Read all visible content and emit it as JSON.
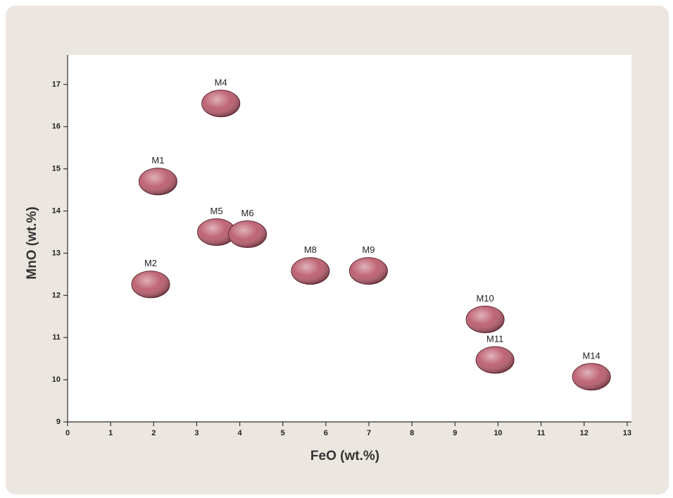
{
  "chart_data": {
    "type": "scatter",
    "x_label": "FeO (wt.%)",
    "y_label": "MnO (wt.%)",
    "point_labels": [
      "M4",
      "M1",
      "M2",
      "M5",
      "M6",
      "M8",
      "M9",
      "M10",
      "M11",
      "M14"
    ],
    "x": [
      3.56,
      2.1,
      1.93,
      3.46,
      4.18,
      5.64,
      6.99,
      9.7,
      9.93,
      12.17
    ],
    "values": [
      16.55,
      14.7,
      12.26,
      13.5,
      13.45,
      12.58,
      12.58,
      11.43,
      10.47,
      10.07
    ],
    "color": "#b85466",
    "xlim": [
      0,
      13.1
    ],
    "ylim": [
      9,
      17.7
    ],
    "xticks": [
      0,
      1,
      2,
      3,
      4,
      5,
      6,
      7,
      8,
      9,
      10,
      11,
      12,
      13
    ],
    "yticks": [
      9,
      10,
      11,
      12,
      13,
      14,
      15,
      16,
      17
    ],
    "grid": false
  }
}
